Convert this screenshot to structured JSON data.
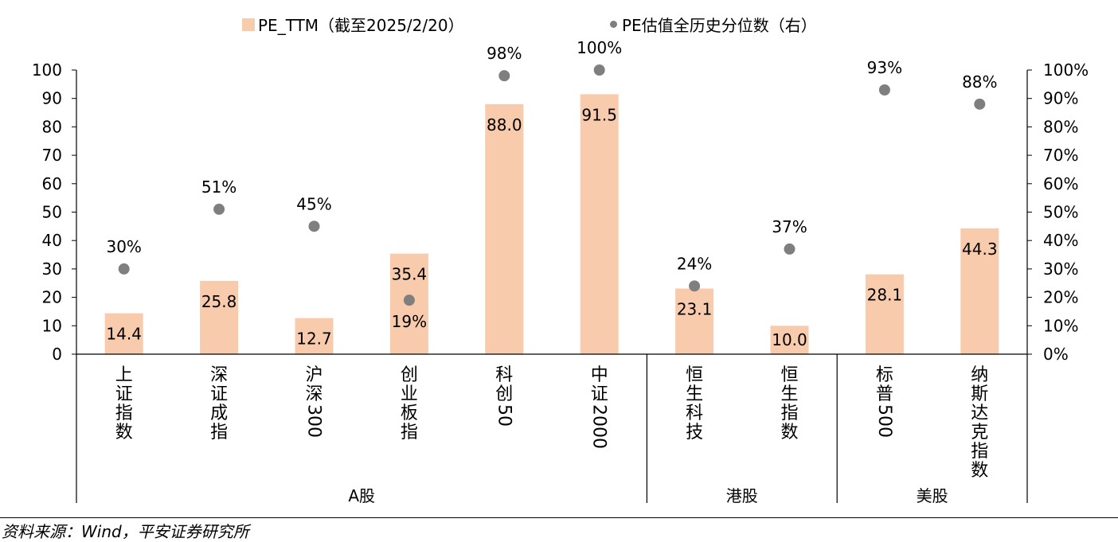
{
  "chart_data": {
    "type": "bar",
    "title": "",
    "ylim": [
      0,
      100
    ],
    "y2lim": [
      0,
      1
    ],
    "yticks": [
      "0",
      "10",
      "20",
      "30",
      "40",
      "50",
      "60",
      "70",
      "80",
      "90",
      "100"
    ],
    "y2ticks": [
      "0%",
      "10%",
      "20%",
      "30%",
      "40%",
      "50%",
      "60%",
      "70%",
      "80%",
      "90%",
      "100%"
    ],
    "legend_placement": "top",
    "grid": false,
    "categories": [
      "上证指数",
      "深证成指",
      "沪深300",
      "创业板指",
      "科创50",
      "中证2000",
      "恒生科技",
      "恒生指数",
      "标普500",
      "纳斯达克指数"
    ],
    "groups": [
      {
        "label": "A股",
        "count": 6
      },
      {
        "label": "港股",
        "count": 2
      },
      {
        "label": "美股",
        "count": 2
      }
    ],
    "series": [
      {
        "name": "PE_TTM（截至2025/2/20）",
        "type": "bar",
        "axis": "left",
        "color": "#f8cbad",
        "values": [
          14.4,
          25.8,
          12.7,
          35.4,
          88.0,
          91.5,
          23.1,
          10.0,
          28.1,
          44.3
        ],
        "labels": [
          "14.4",
          "25.8",
          "12.7",
          "35.4",
          "88.0",
          "91.5",
          "23.1",
          "10.0",
          "28.1",
          "44.3"
        ]
      },
      {
        "name": "PE估值全历史分位数（右）",
        "type": "scatter",
        "axis": "right",
        "color": "#7f7f7f",
        "values": [
          0.3,
          0.51,
          0.45,
          0.19,
          0.98,
          1.0,
          0.24,
          0.37,
          0.93,
          0.88
        ],
        "labels": [
          "30%",
          "51%",
          "45%",
          "19%",
          "98%",
          "100%",
          "24%",
          "37%",
          "93%",
          "88%"
        ]
      }
    ]
  },
  "source": "资料来源：Wind，平安证券研究所"
}
